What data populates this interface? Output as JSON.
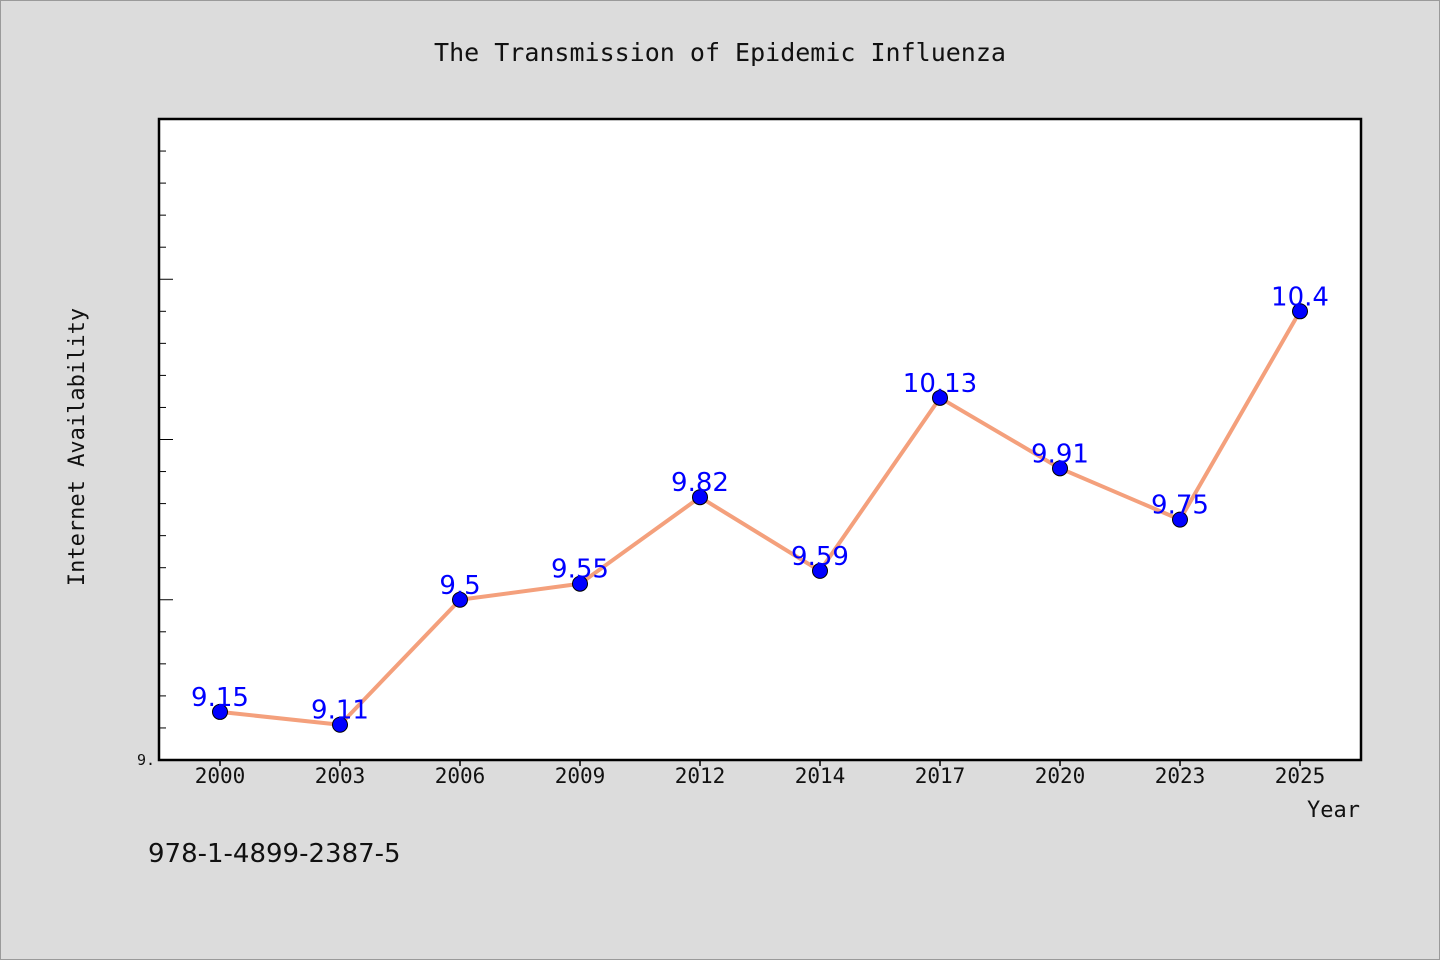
{
  "chart_data": {
    "type": "line",
    "title": "The Transmission of Epidemic Influenza",
    "xlabel": "Year",
    "ylabel": "Internet Availability",
    "categories": [
      "2000",
      "2003",
      "2006",
      "2009",
      "2012",
      "2014",
      "2017",
      "2020",
      "2023",
      "2025"
    ],
    "series": [
      {
        "values": [
          9.15,
          9.11,
          9.5,
          9.55,
          9.82,
          9.59,
          10.13,
          9.91,
          9.75,
          10.4
        ],
        "data_labels": [
          "9.15",
          "9.11",
          "9.5",
          "9.55",
          "9.82",
          "9.59",
          "10.13",
          "9.91",
          "9.75",
          "10.4"
        ],
        "line_color": "#f4a07c",
        "marker_color": "#0000ff"
      }
    ],
    "ylim": [
      9.0,
      11.0
    ],
    "y_major_tick_step": 0.5,
    "y_minor_tick_step": 0.1,
    "y_tick_labels": [
      "9."
    ],
    "grid": false,
    "legend": "none",
    "plot_background": "#ffffff",
    "figure_background": "#dcdcdc"
  },
  "footnote": "978-1-4899-2387-5"
}
